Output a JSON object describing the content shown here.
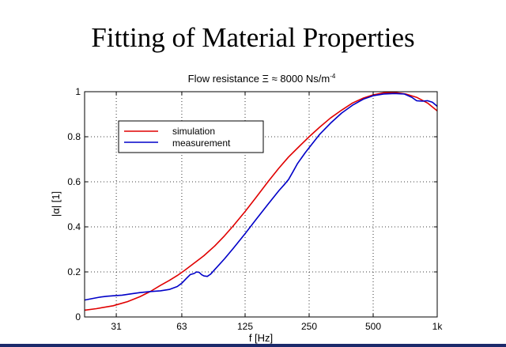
{
  "slide": {
    "title": "Fitting of Material Properties"
  },
  "chart_data": {
    "type": "line",
    "title_prefix": "Flow resistance Ξ ≈ 8000 Ns/m",
    "title_sup": "-4",
    "xlabel": "f [Hz]",
    "ylabel": "|α| [1]",
    "x_scale": "log",
    "xlim": [
      22,
      1000
    ],
    "ylim": [
      0,
      1
    ],
    "grid": true,
    "legend_position": "top-left",
    "x_ticks": [
      {
        "value": 31,
        "label": "31"
      },
      {
        "value": 63,
        "label": "63"
      },
      {
        "value": 125,
        "label": "125"
      },
      {
        "value": 250,
        "label": "250"
      },
      {
        "value": 500,
        "label": "500"
      },
      {
        "value": 1000,
        "label": "1k"
      }
    ],
    "y_ticks": [
      {
        "value": 0,
        "label": "0"
      },
      {
        "value": 0.2,
        "label": "0.2"
      },
      {
        "value": 0.4,
        "label": "0.4"
      },
      {
        "value": 0.6,
        "label": "0.6"
      },
      {
        "value": 0.8,
        "label": "0.8"
      },
      {
        "value": 1,
        "label": "1"
      }
    ],
    "series": [
      {
        "name": "simulation",
        "color": "#e00000",
        "points": [
          [
            22,
            0.03
          ],
          [
            25,
            0.037
          ],
          [
            30,
            0.05
          ],
          [
            35,
            0.068
          ],
          [
            40,
            0.09
          ],
          [
            45,
            0.114
          ],
          [
            50,
            0.14
          ],
          [
            55,
            0.162
          ],
          [
            60,
            0.184
          ],
          [
            65,
            0.207
          ],
          [
            70,
            0.23
          ],
          [
            80,
            0.272
          ],
          [
            90,
            0.315
          ],
          [
            100,
            0.36
          ],
          [
            110,
            0.405
          ],
          [
            125,
            0.468
          ],
          [
            140,
            0.528
          ],
          [
            160,
            0.6
          ],
          [
            180,
            0.66
          ],
          [
            200,
            0.71
          ],
          [
            225,
            0.758
          ],
          [
            250,
            0.8
          ],
          [
            280,
            0.842
          ],
          [
            315,
            0.883
          ],
          [
            355,
            0.918
          ],
          [
            400,
            0.95
          ],
          [
            450,
            0.972
          ],
          [
            500,
            0.986
          ],
          [
            560,
            0.995
          ],
          [
            630,
            0.997
          ],
          [
            710,
            0.99
          ],
          [
            800,
            0.975
          ],
          [
            900,
            0.95
          ],
          [
            1000,
            0.915
          ]
        ]
      },
      {
        "name": "measurement",
        "color": "#0000c8",
        "points": [
          [
            22,
            0.075
          ],
          [
            24,
            0.082
          ],
          [
            26,
            0.088
          ],
          [
            28,
            0.092
          ],
          [
            30,
            0.094
          ],
          [
            33,
            0.097
          ],
          [
            36,
            0.102
          ],
          [
            40,
            0.108
          ],
          [
            45,
            0.113
          ],
          [
            50,
            0.116
          ],
          [
            55,
            0.122
          ],
          [
            60,
            0.135
          ],
          [
            63,
            0.15
          ],
          [
            66,
            0.17
          ],
          [
            69,
            0.188
          ],
          [
            72,
            0.193
          ],
          [
            74,
            0.2
          ],
          [
            76,
            0.198
          ],
          [
            78,
            0.188
          ],
          [
            80,
            0.182
          ],
          [
            83,
            0.18
          ],
          [
            86,
            0.19
          ],
          [
            90,
            0.21
          ],
          [
            100,
            0.258
          ],
          [
            110,
            0.305
          ],
          [
            125,
            0.37
          ],
          [
            140,
            0.43
          ],
          [
            160,
            0.5
          ],
          [
            180,
            0.56
          ],
          [
            190,
            0.585
          ],
          [
            200,
            0.61
          ],
          [
            210,
            0.645
          ],
          [
            220,
            0.68
          ],
          [
            240,
            0.73
          ],
          [
            260,
            0.772
          ],
          [
            280,
            0.81
          ],
          [
            315,
            0.86
          ],
          [
            355,
            0.905
          ],
          [
            400,
            0.94
          ],
          [
            450,
            0.967
          ],
          [
            500,
            0.982
          ],
          [
            560,
            0.99
          ],
          [
            630,
            0.992
          ],
          [
            700,
            0.99
          ],
          [
            760,
            0.975
          ],
          [
            800,
            0.96
          ],
          [
            850,
            0.958
          ],
          [
            900,
            0.96
          ],
          [
            950,
            0.953
          ],
          [
            1000,
            0.935
          ]
        ]
      }
    ]
  }
}
